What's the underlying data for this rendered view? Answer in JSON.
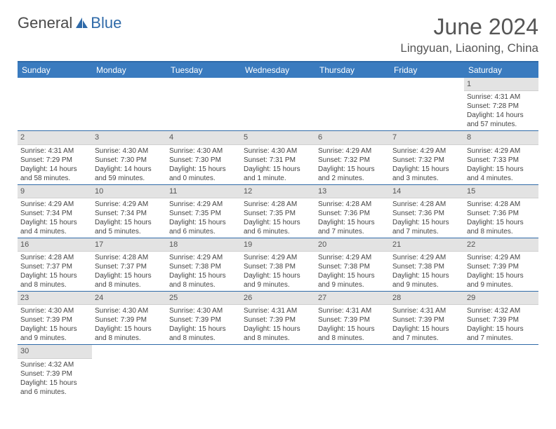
{
  "logo": {
    "text1": "General",
    "text2": "Blue"
  },
  "title": "June 2024",
  "location": "Lingyuan, Liaoning, China",
  "colors": {
    "header_bg": "#3a7bbf",
    "header_text": "#ffffff",
    "rule": "#2f6aa8",
    "daynum_bg": "#e3e3e3",
    "text": "#444444",
    "logo_accent": "#2f6aa8"
  },
  "weekdays": [
    "Sunday",
    "Monday",
    "Tuesday",
    "Wednesday",
    "Thursday",
    "Friday",
    "Saturday"
  ],
  "weeks": [
    [
      null,
      null,
      null,
      null,
      null,
      null,
      {
        "n": "1",
        "sr": "Sunrise: 4:31 AM",
        "ss": "Sunset: 7:28 PM",
        "dl": "Daylight: 14 hours and 57 minutes."
      }
    ],
    [
      {
        "n": "2",
        "sr": "Sunrise: 4:31 AM",
        "ss": "Sunset: 7:29 PM",
        "dl": "Daylight: 14 hours and 58 minutes."
      },
      {
        "n": "3",
        "sr": "Sunrise: 4:30 AM",
        "ss": "Sunset: 7:30 PM",
        "dl": "Daylight: 14 hours and 59 minutes."
      },
      {
        "n": "4",
        "sr": "Sunrise: 4:30 AM",
        "ss": "Sunset: 7:30 PM",
        "dl": "Daylight: 15 hours and 0 minutes."
      },
      {
        "n": "5",
        "sr": "Sunrise: 4:30 AM",
        "ss": "Sunset: 7:31 PM",
        "dl": "Daylight: 15 hours and 1 minute."
      },
      {
        "n": "6",
        "sr": "Sunrise: 4:29 AM",
        "ss": "Sunset: 7:32 PM",
        "dl": "Daylight: 15 hours and 2 minutes."
      },
      {
        "n": "7",
        "sr": "Sunrise: 4:29 AM",
        "ss": "Sunset: 7:32 PM",
        "dl": "Daylight: 15 hours and 3 minutes."
      },
      {
        "n": "8",
        "sr": "Sunrise: 4:29 AM",
        "ss": "Sunset: 7:33 PM",
        "dl": "Daylight: 15 hours and 4 minutes."
      }
    ],
    [
      {
        "n": "9",
        "sr": "Sunrise: 4:29 AM",
        "ss": "Sunset: 7:34 PM",
        "dl": "Daylight: 15 hours and 4 minutes."
      },
      {
        "n": "10",
        "sr": "Sunrise: 4:29 AM",
        "ss": "Sunset: 7:34 PM",
        "dl": "Daylight: 15 hours and 5 minutes."
      },
      {
        "n": "11",
        "sr": "Sunrise: 4:29 AM",
        "ss": "Sunset: 7:35 PM",
        "dl": "Daylight: 15 hours and 6 minutes."
      },
      {
        "n": "12",
        "sr": "Sunrise: 4:28 AM",
        "ss": "Sunset: 7:35 PM",
        "dl": "Daylight: 15 hours and 6 minutes."
      },
      {
        "n": "13",
        "sr": "Sunrise: 4:28 AM",
        "ss": "Sunset: 7:36 PM",
        "dl": "Daylight: 15 hours and 7 minutes."
      },
      {
        "n": "14",
        "sr": "Sunrise: 4:28 AM",
        "ss": "Sunset: 7:36 PM",
        "dl": "Daylight: 15 hours and 7 minutes."
      },
      {
        "n": "15",
        "sr": "Sunrise: 4:28 AM",
        "ss": "Sunset: 7:36 PM",
        "dl": "Daylight: 15 hours and 8 minutes."
      }
    ],
    [
      {
        "n": "16",
        "sr": "Sunrise: 4:28 AM",
        "ss": "Sunset: 7:37 PM",
        "dl": "Daylight: 15 hours and 8 minutes."
      },
      {
        "n": "17",
        "sr": "Sunrise: 4:28 AM",
        "ss": "Sunset: 7:37 PM",
        "dl": "Daylight: 15 hours and 8 minutes."
      },
      {
        "n": "18",
        "sr": "Sunrise: 4:29 AM",
        "ss": "Sunset: 7:38 PM",
        "dl": "Daylight: 15 hours and 8 minutes."
      },
      {
        "n": "19",
        "sr": "Sunrise: 4:29 AM",
        "ss": "Sunset: 7:38 PM",
        "dl": "Daylight: 15 hours and 9 minutes."
      },
      {
        "n": "20",
        "sr": "Sunrise: 4:29 AM",
        "ss": "Sunset: 7:38 PM",
        "dl": "Daylight: 15 hours and 9 minutes."
      },
      {
        "n": "21",
        "sr": "Sunrise: 4:29 AM",
        "ss": "Sunset: 7:38 PM",
        "dl": "Daylight: 15 hours and 9 minutes."
      },
      {
        "n": "22",
        "sr": "Sunrise: 4:29 AM",
        "ss": "Sunset: 7:39 PM",
        "dl": "Daylight: 15 hours and 9 minutes."
      }
    ],
    [
      {
        "n": "23",
        "sr": "Sunrise: 4:30 AM",
        "ss": "Sunset: 7:39 PM",
        "dl": "Daylight: 15 hours and 9 minutes."
      },
      {
        "n": "24",
        "sr": "Sunrise: 4:30 AM",
        "ss": "Sunset: 7:39 PM",
        "dl": "Daylight: 15 hours and 8 minutes."
      },
      {
        "n": "25",
        "sr": "Sunrise: 4:30 AM",
        "ss": "Sunset: 7:39 PM",
        "dl": "Daylight: 15 hours and 8 minutes."
      },
      {
        "n": "26",
        "sr": "Sunrise: 4:31 AM",
        "ss": "Sunset: 7:39 PM",
        "dl": "Daylight: 15 hours and 8 minutes."
      },
      {
        "n": "27",
        "sr": "Sunrise: 4:31 AM",
        "ss": "Sunset: 7:39 PM",
        "dl": "Daylight: 15 hours and 8 minutes."
      },
      {
        "n": "28",
        "sr": "Sunrise: 4:31 AM",
        "ss": "Sunset: 7:39 PM",
        "dl": "Daylight: 15 hours and 7 minutes."
      },
      {
        "n": "29",
        "sr": "Sunrise: 4:32 AM",
        "ss": "Sunset: 7:39 PM",
        "dl": "Daylight: 15 hours and 7 minutes."
      }
    ],
    [
      {
        "n": "30",
        "sr": "Sunrise: 4:32 AM",
        "ss": "Sunset: 7:39 PM",
        "dl": "Daylight: 15 hours and 6 minutes."
      },
      null,
      null,
      null,
      null,
      null,
      null
    ]
  ]
}
